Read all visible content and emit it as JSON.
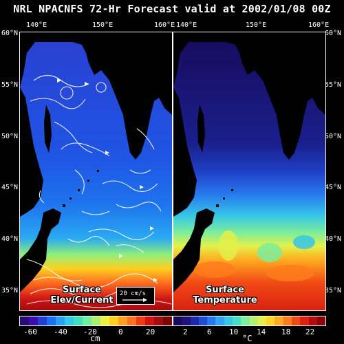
{
  "title": "NRL NPACNFS 72-Hr Forecast valid at 2002/01/08 00Z",
  "lon_labels_left": [
    "140°E",
    "150°E",
    "160°E"
  ],
  "lon_labels_right": [
    "140°E",
    "150°E",
    "160°E"
  ],
  "lat_labels_left": [
    "60°N",
    "55°N",
    "50°N",
    "45°N",
    "40°N",
    "35°N"
  ],
  "lat_labels_right": [
    "60°N",
    "55°N",
    "50°N",
    "45°N",
    "40°N",
    "35°N"
  ],
  "left_panel": {
    "caption_line1": "Surface",
    "caption_line2": "Elev/Current",
    "scale_label": "20 cm/s"
  },
  "right_panel": {
    "caption_line1": "Surface",
    "caption_line2": "Temperature"
  },
  "left_colorbar": {
    "ticks": [
      "-60",
      "-40",
      "-20",
      "0",
      "20"
    ],
    "unit": "cm",
    "colors": [
      "#2a0a78",
      "#3a0fb0",
      "#1f3fd8",
      "#1e6ef0",
      "#2aa0f5",
      "#33c8e8",
      "#3fe0c0",
      "#6ff0a0",
      "#a8f070",
      "#e8f040",
      "#ffd020",
      "#ffa020",
      "#ff7020",
      "#f03a14",
      "#d01414",
      "#a40c0c",
      "#7a0606"
    ]
  },
  "right_colorbar": {
    "ticks": [
      "2",
      "6",
      "10",
      "14",
      "18",
      "22"
    ],
    "unit": "°C",
    "colors": [
      "#170a5a",
      "#22107c",
      "#1a2aa8",
      "#1f4bd6",
      "#2677ee",
      "#30a2f2",
      "#36c6e6",
      "#46dec8",
      "#7cee9c",
      "#b2f272",
      "#e4f048",
      "#ffd428",
      "#ffaa20",
      "#ff7c1c",
      "#f24a16",
      "#d92210",
      "#b40c0c",
      "#8a0606"
    ]
  }
}
